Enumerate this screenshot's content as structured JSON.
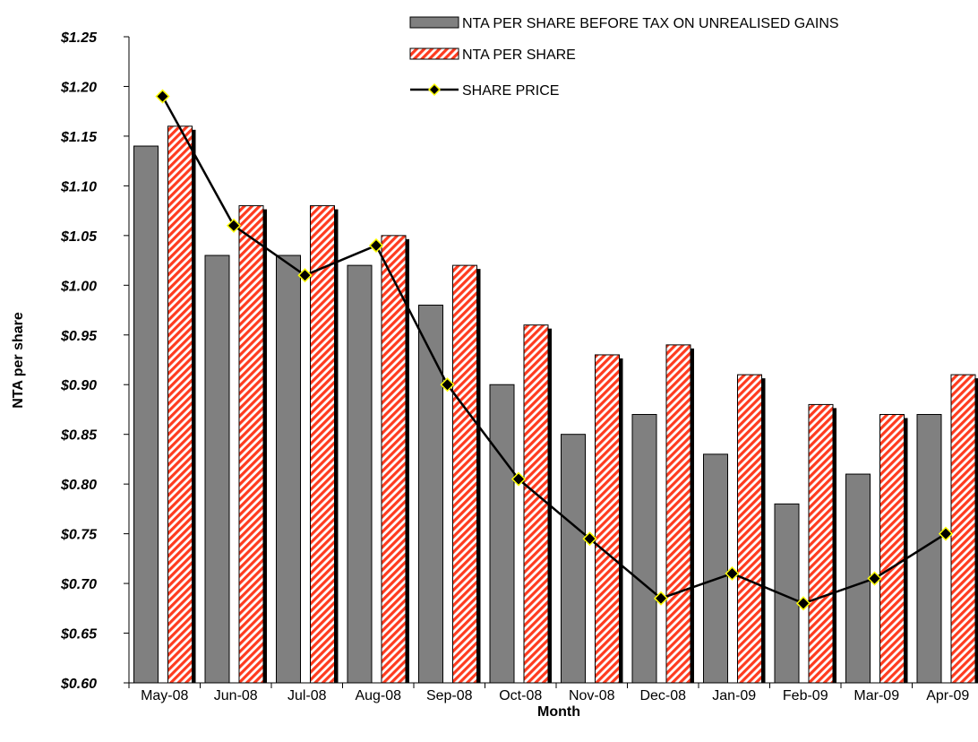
{
  "chart_data": {
    "type": "bar",
    "categories": [
      "May-08",
      "Jun-08",
      "Jul-08",
      "Aug-08",
      "Sep-08",
      "Oct-08",
      "Nov-08",
      "Dec-08",
      "Jan-09",
      "Feb-09",
      "Mar-09",
      "Apr-09"
    ],
    "series": [
      {
        "name": "NTA PER SHARE BEFORE TAX ON UNREALISED GAINS",
        "kind": "bar",
        "color": "#808080",
        "values": [
          1.14,
          1.03,
          1.03,
          1.02,
          0.98,
          0.9,
          0.85,
          0.87,
          0.83,
          0.78,
          0.81,
          0.87
        ]
      },
      {
        "name": "NTA PER SHARE",
        "kind": "bar",
        "pattern": "diagonal-hatch",
        "color": "#ff3b1f",
        "values": [
          1.16,
          1.08,
          1.08,
          1.05,
          1.02,
          0.96,
          0.93,
          0.94,
          0.91,
          0.88,
          0.87,
          0.91
        ]
      },
      {
        "name": "SHARE PRICE",
        "kind": "line",
        "color": "#000000",
        "marker": "diamond",
        "marker_color": "#ffff00",
        "values": [
          1.19,
          1.06,
          1.01,
          1.04,
          0.9,
          0.805,
          0.745,
          0.685,
          0.71,
          0.68,
          0.705,
          0.75
        ]
      }
    ],
    "xlabel": "Month",
    "ylabel": "NTA per share",
    "ylim": [
      0.6,
      1.25
    ],
    "yticks": [
      "$0.60",
      "$0.65",
      "$0.70",
      "$0.75",
      "$0.80",
      "$0.85",
      "$0.90",
      "$0.95",
      "$1.00",
      "$1.05",
      "$1.10",
      "$1.15",
      "$1.20",
      "$1.25"
    ],
    "grid": false,
    "legend_position": "top-right"
  }
}
